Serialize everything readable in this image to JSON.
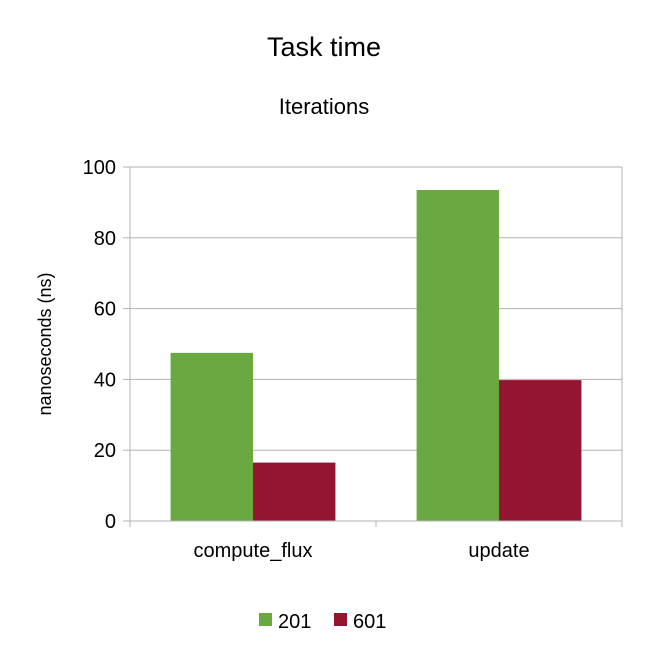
{
  "chart_data": {
    "type": "bar",
    "title": "Task time",
    "subtitle": "Iterations",
    "xlabel": "",
    "ylabel": "nanoseconds (ns)",
    "categories": [
      "compute_flux",
      "update"
    ],
    "series": [
      {
        "name": "201",
        "values": [
          47.5,
          93.5
        ],
        "color": "#6aa842"
      },
      {
        "name": "601",
        "values": [
          16.5,
          39.8
        ],
        "color": "#941530"
      }
    ],
    "ylim": [
      0,
      100
    ],
    "yticks": [
      0,
      20,
      40,
      60,
      80,
      100
    ],
    "grid": true,
    "legend": "bottom",
    "gridline_color": "#b3b3b3"
  }
}
